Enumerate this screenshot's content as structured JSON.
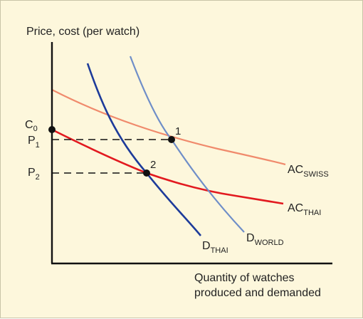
{
  "chart_data": {
    "type": "line",
    "title": "",
    "ylabel": "Price, cost (per watch)",
    "xlabel_line1": "Quantity of watches",
    "xlabel_line2": "produced and demanded",
    "y_axis_labels": [
      {
        "id": "c0",
        "main": "C",
        "sub": "0",
        "level": "C0"
      },
      {
        "id": "p1",
        "main": "P",
        "sub": "1",
        "level": "P1"
      },
      {
        "id": "p2",
        "main": "P",
        "sub": "2",
        "level": "P2"
      }
    ],
    "points": [
      {
        "id": "1",
        "label": "1"
      },
      {
        "id": "2",
        "label": "2"
      }
    ],
    "series": [
      {
        "id": "ac_swiss",
        "main": "AC",
        "sub": "SWISS",
        "color": "#f08a6c"
      },
      {
        "id": "ac_thai",
        "main": "AC",
        "sub": "THAI",
        "color": "#e2191f"
      },
      {
        "id": "d_thai",
        "main": "D",
        "sub": "THAI",
        "color": "#1d3b9a"
      },
      {
        "id": "d_world",
        "main": "D",
        "sub": "WORLD",
        "color": "#6f8ec8"
      }
    ],
    "colors": {
      "background": "#fdf7dc",
      "axis": "#111111",
      "dashed": "#111111"
    }
  }
}
